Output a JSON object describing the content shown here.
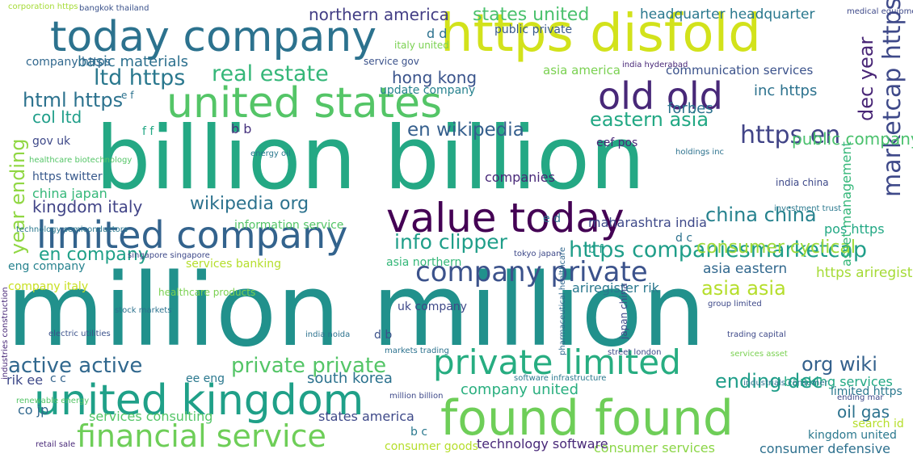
{
  "words": [
    {
      "text": "billion billion",
      "color": "#24a884"
    },
    {
      "text": "million million",
      "color": "#21918c"
    },
    {
      "text": "united states",
      "color": "#54c567"
    },
    {
      "text": "today company",
      "color": "#2c728e"
    },
    {
      "text": "https disfold",
      "color": "#d2e21b"
    },
    {
      "text": "value today",
      "color": "#440154"
    },
    {
      "text": "limited company",
      "color": "#33638d"
    },
    {
      "text": "found found",
      "color": "#6ece58"
    },
    {
      "text": "united kingdom",
      "color": "#1fa088"
    },
    {
      "text": "private limited",
      "color": "#27ad81"
    },
    {
      "text": "company private",
      "color": "#3b528b"
    },
    {
      "text": "old old",
      "color": "#482878"
    },
    {
      "text": "financial service",
      "color": "#6ece58"
    },
    {
      "text": "https companiesmarketcap",
      "color": "#1f9e89"
    },
    {
      "text": "marketcap https",
      "color": "#3e4989"
    },
    {
      "text": "active active",
      "color": "#31688e"
    },
    {
      "text": "china china",
      "color": "#26828e"
    },
    {
      "text": "real estate",
      "color": "#35b779"
    },
    {
      "text": "private private",
      "color": "#54c567"
    },
    {
      "text": "states united",
      "color": "#4ac16d"
    },
    {
      "text": "info clipper",
      "color": "#1f9e89"
    },
    {
      "text": "ltd https",
      "color": "#2a788e"
    },
    {
      "text": "en wikipedia",
      "color": "#355f8d"
    },
    {
      "text": "https en",
      "color": "#414487"
    },
    {
      "text": "wikipedia org",
      "color": "#2c728e"
    },
    {
      "text": "en company",
      "color": "#1fa088"
    },
    {
      "text": "kingdom italy",
      "color": "#414487"
    },
    {
      "text": "html https",
      "color": "#2c728e"
    },
    {
      "text": "eastern asia",
      "color": "#22a884"
    },
    {
      "text": "consumer cyclical",
      "color": "#9fda3a"
    },
    {
      "text": "org wiki",
      "color": "#34618d"
    },
    {
      "text": "basic materials",
      "color": "#2d708e"
    },
    {
      "text": "northern america",
      "color": "#433e85"
    },
    {
      "text": "headquarter headquarter",
      "color": "#2a788e"
    },
    {
      "text": "hong kong",
      "color": "#3a548c"
    },
    {
      "text": "forbes",
      "color": "#2c728e"
    },
    {
      "text": "south korea",
      "color": "#2c728e"
    },
    {
      "text": "ending dec",
      "color": "#1f9e89"
    },
    {
      "text": "company united",
      "color": "#29af7f"
    },
    {
      "text": "consumer services",
      "color": "#8bd646"
    },
    {
      "text": "consumer defensive",
      "color": "#2d708e"
    },
    {
      "text": "asia asia",
      "color": "#b5de2b"
    },
    {
      "text": "banking services",
      "color": "#22a884"
    },
    {
      "text": "ariregister rik",
      "color": "#2a788e"
    },
    {
      "text": "https ariregister",
      "color": "#a5db36"
    },
    {
      "text": "asia eastern",
      "color": "#31688e"
    },
    {
      "text": "public company",
      "color": "#4ac16d"
    },
    {
      "text": "dec year",
      "color": "#482576"
    },
    {
      "text": "year ending",
      "color": "#90d743"
    },
    {
      "text": "col ltd",
      "color": "#1f9e89"
    },
    {
      "text": "oil gas",
      "color": "#2c728e"
    },
    {
      "text": "states america",
      "color": "#3e4989"
    },
    {
      "text": "technology software",
      "color": "#482878"
    },
    {
      "text": "consumer goods",
      "color": "#b5de2b"
    },
    {
      "text": "communication services",
      "color": "#3b528b"
    },
    {
      "text": "asia america",
      "color": "#7ad151"
    },
    {
      "text": "public private",
      "color": "#38598c"
    },
    {
      "text": "update company",
      "color": "#26828e"
    },
    {
      "text": "company https",
      "color": "#31688e"
    },
    {
      "text": "services consulting",
      "color": "#54c567"
    },
    {
      "text": "china japan",
      "color": "#35b779"
    },
    {
      "text": "maharashtra india",
      "color": "#3e4989"
    },
    {
      "text": "https twitter",
      "color": "#38598c"
    },
    {
      "text": "asset management",
      "color": "#35b779"
    },
    {
      "text": "pos https",
      "color": "#22a884"
    },
    {
      "text": "services banking",
      "color": "#b5de2b"
    },
    {
      "text": "eng company",
      "color": "#26828e"
    },
    {
      "text": "company italy",
      "color": "#c8e020"
    },
    {
      "text": "kingdom united",
      "color": "#2a788e"
    },
    {
      "text": "search id",
      "color": "#b5de2b"
    },
    {
      "text": "limited https",
      "color": "#2a788e"
    },
    {
      "text": "india china",
      "color": "#3e4989"
    },
    {
      "text": "uk company",
      "color": "#3e4989"
    },
    {
      "text": "inc https",
      "color": "#2c728e"
    },
    {
      "text": "companies",
      "color": "#482878"
    },
    {
      "text": "information service",
      "color": "#54c567"
    },
    {
      "text": "asia northern",
      "color": "#35b779"
    },
    {
      "text": "service gov",
      "color": "#3b528b"
    },
    {
      "text": "co jp",
      "color": "#31688e"
    },
    {
      "text": "rik ee",
      "color": "#3e4989"
    },
    {
      "text": "ee eng",
      "color": "#2a788e"
    },
    {
      "text": "c c",
      "color": "#33638d"
    },
    {
      "text": "b b",
      "color": "#46327e"
    },
    {
      "text": "d d",
      "color": "#2c728e"
    },
    {
      "text": "e d",
      "color": "#2c728e"
    },
    {
      "text": "d c",
      "color": "#2c728e"
    },
    {
      "text": "d b",
      "color": "#3b528b"
    },
    {
      "text": "b c",
      "color": "#2a788e"
    },
    {
      "text": "b f",
      "color": "#1f9e89"
    },
    {
      "text": "f f",
      "color": "#22a884"
    },
    {
      "text": "e f",
      "color": "#2c728e"
    },
    {
      "text": "eef pos",
      "color": "#482878"
    },
    {
      "text": "gov uk",
      "color": "#3e4989"
    },
    {
      "text": "healthcare products",
      "color": "#7ad151"
    },
    {
      "text": "electric utilities",
      "color": "#3b528b"
    },
    {
      "text": "pharmaceutical healthcare",
      "color": "#31688e"
    },
    {
      "text": "holdings inc",
      "color": "#2c728e"
    },
    {
      "text": "japan china",
      "color": "#3e4989"
    },
    {
      "text": "india hyderabad",
      "color": "#482878"
    },
    {
      "text": "bangkok thailand",
      "color": "#3b528b"
    },
    {
      "text": "healthcare biotechnology",
      "color": "#54c567"
    },
    {
      "text": "technology semiconductors",
      "color": "#2a788e"
    },
    {
      "text": "singapore singapore",
      "color": "#3e4989"
    },
    {
      "text": "industrials consumer",
      "color": "#2c728e"
    },
    {
      "text": "stock markets",
      "color": "#2c728e"
    },
    {
      "text": "trading capital",
      "color": "#3e4989"
    },
    {
      "text": "renewable energy",
      "color": "#54c567"
    },
    {
      "text": "million billion",
      "color": "#3e4989"
    },
    {
      "text": "software infrastructure",
      "color": "#2a788e"
    },
    {
      "text": "investment trust",
      "color": "#2a788e"
    },
    {
      "text": "corporation https",
      "color": "#a5db36"
    },
    {
      "text": "medical equipment",
      "color": "#3e4989"
    },
    {
      "text": "industries construction",
      "color": "#482878"
    },
    {
      "text": "energy oil",
      "color": "#2a788e"
    },
    {
      "text": "italy united",
      "color": "#7ad151"
    },
    {
      "text": "group limited",
      "color": "#3e4989"
    },
    {
      "text": "services asset",
      "color": "#7ad151"
    },
    {
      "text": "tokyo japan",
      "color": "#3e4989"
    },
    {
      "text": "street london",
      "color": "#3e4989"
    },
    {
      "text": "ending mar",
      "color": "#3e4989"
    },
    {
      "text": "retail sale",
      "color": "#482878"
    },
    {
      "text": "india noida",
      "color": "#2c728e"
    },
    {
      "text": "markets trading",
      "color": "#2c728e"
    }
  ]
}
